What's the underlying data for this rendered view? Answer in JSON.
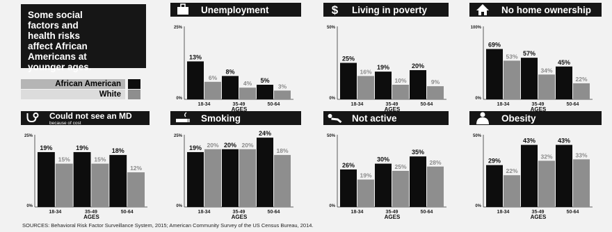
{
  "intro": {
    "lines": [
      "Some social",
      "factors and",
      "health risks",
      "affect African",
      "Americans at",
      "younger ages."
    ]
  },
  "legend": {
    "items": [
      {
        "label": "African American",
        "color": "#0d0d0d",
        "label_bg": "#b5b5b5"
      },
      {
        "label": "White",
        "color": "#8e8e8e",
        "label_bg": "#dcdcdc"
      }
    ]
  },
  "colors": {
    "african_american": "#0d0d0d",
    "white": "#8e8e8e",
    "header_bg": "#161616",
    "header_text": "#ffffff"
  },
  "chart_data": [
    {
      "type": "bar",
      "title": "Unemployment",
      "icon": "briefcase-icon",
      "categories": [
        "18-34",
        "35-49",
        "50-64"
      ],
      "xlabel": "AGES",
      "ylim": [
        0,
        25
      ],
      "ytick_labels": [
        "25%",
        "0%"
      ],
      "series": [
        {
          "name": "African American",
          "values": [
            13,
            8,
            5
          ],
          "labels": [
            "13%",
            "8%",
            "5%"
          ]
        },
        {
          "name": "White",
          "values": [
            6,
            4,
            3
          ],
          "labels": [
            "6%",
            "4%",
            "3%"
          ]
        }
      ]
    },
    {
      "type": "bar",
      "title": "Living in poverty",
      "icon": "dollar-icon",
      "categories": [
        "18-34",
        "35-49",
        "50-64"
      ],
      "xlabel": "AGES",
      "ylim": [
        0,
        50
      ],
      "ytick_labels": [
        "50%",
        "0%"
      ],
      "series": [
        {
          "name": "African American",
          "values": [
            25,
            19,
            20
          ],
          "labels": [
            "25%",
            "19%",
            "20%"
          ]
        },
        {
          "name": "White",
          "values": [
            16,
            10,
            9
          ],
          "labels": [
            "16%",
            "10%",
            "9%"
          ]
        }
      ]
    },
    {
      "type": "bar",
      "title": "No home ownership",
      "icon": "house-icon",
      "categories": [
        "18-34",
        "35-49",
        "50-64"
      ],
      "xlabel": "AGES",
      "ylim": [
        0,
        100
      ],
      "ytick_labels": [
        "100%",
        "0%"
      ],
      "series": [
        {
          "name": "African American",
          "values": [
            69,
            57,
            45
          ],
          "labels": [
            "69%",
            "57%",
            "45%"
          ]
        },
        {
          "name": "White",
          "values": [
            53,
            34,
            22
          ],
          "labels": [
            "53%",
            "34%",
            "22%"
          ]
        }
      ]
    },
    {
      "type": "bar",
      "title": "Could not see an MD",
      "subtitle": "because of cost",
      "icon": "stethoscope-icon",
      "categories": [
        "18-34",
        "35-49",
        "50-64"
      ],
      "xlabel": "AGES",
      "ylim": [
        0,
        25
      ],
      "ytick_labels": [
        "25%",
        "0%"
      ],
      "series": [
        {
          "name": "African American",
          "values": [
            19,
            19,
            18
          ],
          "labels": [
            "19%",
            "19%",
            "18%"
          ]
        },
        {
          "name": "White",
          "values": [
            15,
            15,
            12
          ],
          "labels": [
            "15%",
            "15%",
            "12%"
          ]
        }
      ]
    },
    {
      "type": "bar",
      "title": "Smoking",
      "icon": "cigarette-icon",
      "categories": [
        "18-34",
        "35-49",
        "50-64"
      ],
      "xlabel": "AGES",
      "ylim": [
        0,
        25
      ],
      "ytick_labels": [
        "25%",
        "0%"
      ],
      "series": [
        {
          "name": "African American",
          "values": [
            19,
            20,
            24
          ],
          "labels": [
            "19%",
            "20%",
            "24%"
          ]
        },
        {
          "name": "White",
          "values": [
            20,
            20,
            18
          ],
          "labels": [
            "20%",
            "20%",
            "18%"
          ]
        }
      ]
    },
    {
      "type": "bar",
      "title": "Not active",
      "icon": "reclining-person-icon",
      "categories": [
        "18-34",
        "35-49",
        "50-64"
      ],
      "xlabel": "AGES",
      "ylim": [
        0,
        50
      ],
      "ytick_labels": [
        "50%",
        "0%"
      ],
      "series": [
        {
          "name": "African American",
          "values": [
            26,
            30,
            35
          ],
          "labels": [
            "26%",
            "30%",
            "35%"
          ]
        },
        {
          "name": "White",
          "values": [
            19,
            25,
            28
          ],
          "labels": [
            "19%",
            "25%",
            "28%"
          ]
        }
      ]
    },
    {
      "type": "bar",
      "title": "Obesity",
      "icon": "torso-icon",
      "categories": [
        "18-34",
        "35-49",
        "50-64"
      ],
      "xlabel": "AGES",
      "ylim": [
        0,
        50
      ],
      "ytick_labels": [
        "50%",
        "0%"
      ],
      "series": [
        {
          "name": "African American",
          "values": [
            29,
            43,
            43
          ],
          "labels": [
            "29%",
            "43%",
            "43%"
          ]
        },
        {
          "name": "White",
          "values": [
            22,
            32,
            33
          ],
          "labels": [
            "22%",
            "32%",
            "33%"
          ]
        }
      ]
    }
  ],
  "footer": {
    "sources": "SOURCES: Behavioral Risk Factor Surveillance System, 2015; American Community Survey of the US Census Bureau, 2014."
  }
}
